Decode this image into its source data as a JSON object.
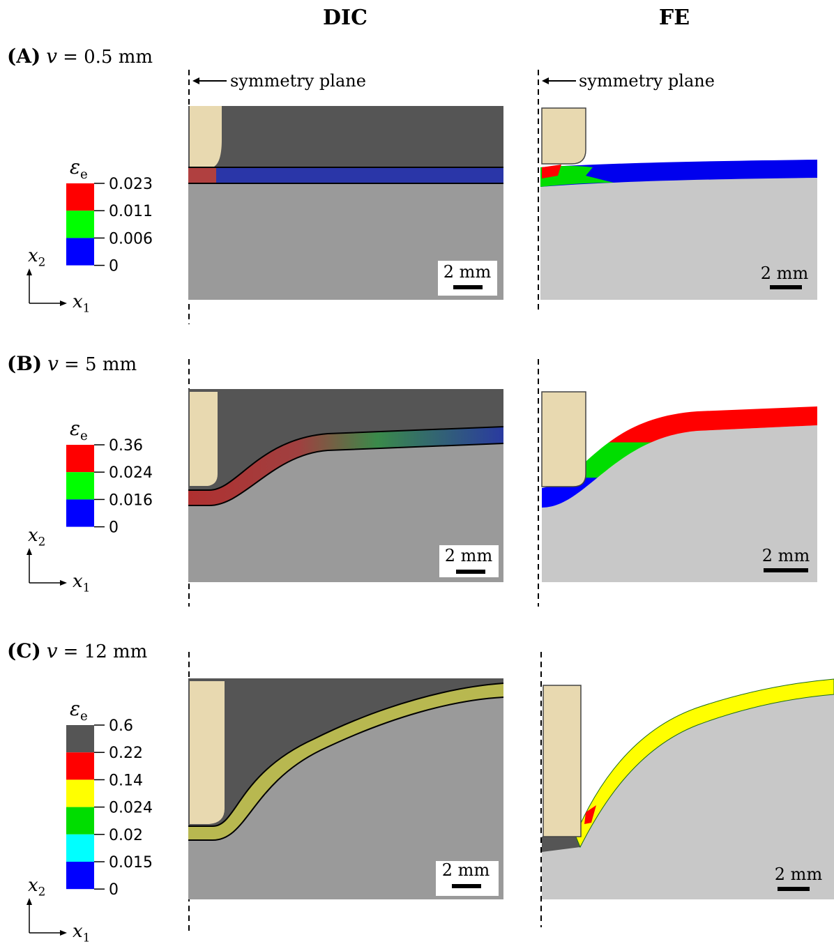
{
  "columns": [
    "DIC",
    "FE"
  ],
  "symmetry_plane": "symmetry plane",
  "scale_bar": "2 mm",
  "colorbar_symbol": {
    "symbol": "ε",
    "sub": "e"
  },
  "axes": {
    "x1": {
      "symbol": "x",
      "sub": "1"
    },
    "x2": {
      "symbol": "x",
      "sub": "2"
    }
  },
  "panels": [
    {
      "letter": "(A)",
      "variable": "v",
      "value": "= 0.5 mm",
      "colorbar": {
        "labels": [
          "0.023",
          "0.011",
          "0.006",
          "0"
        ],
        "colors": [
          "#ff0000",
          "#00ff00",
          "#0000ff"
        ]
      }
    },
    {
      "letter": "(B)",
      "variable": "v",
      "value": "= 5 mm",
      "colorbar": {
        "labels": [
          "0.36",
          "0.024",
          "0.016",
          "0"
        ],
        "colors": [
          "#ff0000",
          "#00ff00",
          "#0000ff"
        ]
      }
    },
    {
      "letter": "(C)",
      "variable": "v",
      "value": "= 12 mm",
      "colorbar": {
        "labels": [
          "0.6",
          "0.22",
          "0.14",
          "0.024",
          "0.02",
          "0.015",
          "0"
        ],
        "colors": [
          "#555555",
          "#ff0000",
          "#ffff00",
          "#00dd00",
          "#00ffff",
          "#0000ff"
        ]
      }
    }
  ]
}
